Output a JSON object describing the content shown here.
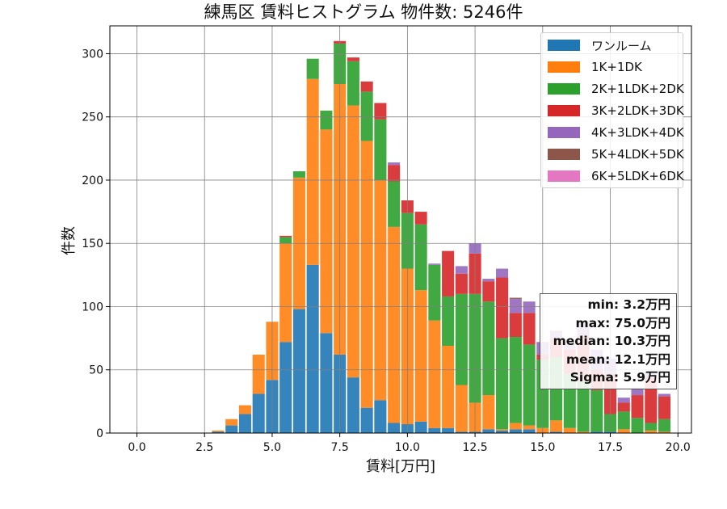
{
  "chart_data": {
    "type": "bar",
    "stacked": true,
    "title": "練馬区 賃料ヒストグラム  物件数: 5246件",
    "xlabel": "賃料[万円]",
    "ylabel": "件数",
    "xlim": [
      -1.0,
      20.5
    ],
    "ylim": [
      0,
      322
    ],
    "bin_width": 0.5,
    "grid": true,
    "legend_position": "top-right",
    "x_ticks": [
      "0.0",
      "2.5",
      "5.0",
      "7.5",
      "10.0",
      "12.5",
      "15.0",
      "17.5",
      "20.0"
    ],
    "y_ticks": [
      "0",
      "50",
      "100",
      "150",
      "200",
      "250",
      "300"
    ],
    "x": [
      3.0,
      3.5,
      4.0,
      4.5,
      5.0,
      5.5,
      6.0,
      6.5,
      7.0,
      7.5,
      8.0,
      8.5,
      9.0,
      9.5,
      10.0,
      10.5,
      11.0,
      11.5,
      12.0,
      12.5,
      13.0,
      13.5,
      14.0,
      14.5,
      15.0,
      15.5,
      16.0,
      16.5,
      17.0,
      17.5,
      18.0,
      18.5,
      19.0,
      19.5
    ],
    "series": [
      {
        "name": "ワンルーム",
        "color": "#1f77b4",
        "values": [
          1,
          6,
          15,
          31,
          42,
          72,
          98,
          133,
          79,
          62,
          44,
          20,
          26,
          8,
          7,
          9,
          4,
          4,
          1,
          1,
          3,
          2,
          3,
          3,
          0,
          1,
          0,
          0,
          1,
          1,
          0,
          0,
          0,
          0
        ]
      },
      {
        "name": "1K+1DK",
        "color": "#ff7f0e",
        "values": [
          1,
          5,
          7,
          31,
          46,
          78,
          104,
          147,
          161,
          214,
          215,
          211,
          174,
          155,
          123,
          104,
          85,
          65,
          37,
          23,
          27,
          1,
          5,
          3,
          4,
          9,
          4,
          1,
          0,
          0,
          3,
          0,
          2,
          1
        ]
      },
      {
        "name": "2K+1LDK+2DK",
        "color": "#2ca02c",
        "values": [
          0,
          0,
          0,
          0,
          0,
          5,
          5,
          16,
          15,
          32,
          35,
          39,
          48,
          36,
          44,
          52,
          44,
          39,
          72,
          86,
          74,
          72,
          68,
          64,
          54,
          50,
          43,
          40,
          33,
          14,
          14,
          12,
          6,
          10
        ]
      },
      {
        "name": "3K+2LDK+3DK",
        "color": "#d62728",
        "values": [
          0,
          0,
          0,
          0,
          0,
          1,
          0,
          0,
          0,
          2,
          3,
          8,
          13,
          13,
          10,
          10,
          0,
          36,
          16,
          32,
          16,
          48,
          19,
          25,
          4,
          15,
          19,
          36,
          16,
          32,
          7,
          18,
          36,
          18
        ]
      },
      {
        "name": "4K+3LDK+4DK",
        "color": "#9467bd",
        "values": [
          0,
          0,
          0,
          0,
          0,
          0,
          0,
          0,
          0,
          0,
          0,
          0,
          0,
          2,
          0,
          0,
          1,
          0,
          6,
          8,
          2,
          7,
          11,
          9,
          10,
          6,
          5,
          12,
          16,
          12,
          4,
          6,
          4,
          2
        ]
      },
      {
        "name": "5K+4LDK+5DK",
        "color": "#8c564b",
        "values": [
          0,
          0,
          0,
          0,
          0,
          0,
          0,
          0,
          0,
          0,
          0,
          0,
          0,
          0,
          0,
          0,
          0,
          0,
          0,
          0,
          0,
          0,
          1,
          0,
          0,
          0,
          0,
          0,
          0,
          0,
          0,
          0,
          0,
          0
        ]
      },
      {
        "name": "6K+5LDK+6DK",
        "color": "#e377c2",
        "values": [
          0,
          0,
          0,
          0,
          0,
          0,
          0,
          0,
          0,
          0,
          0,
          0,
          0,
          0,
          0,
          0,
          0,
          0,
          0,
          0,
          0,
          0,
          0,
          0,
          0,
          0,
          0,
          0,
          0,
          0,
          0,
          0,
          0,
          0
        ]
      }
    ],
    "annotations": [
      "min: 3.2万円",
      "max: 75.0万円",
      "median: 10.3万円",
      "mean: 12.1万円",
      "Sigma: 5.9万円"
    ]
  }
}
